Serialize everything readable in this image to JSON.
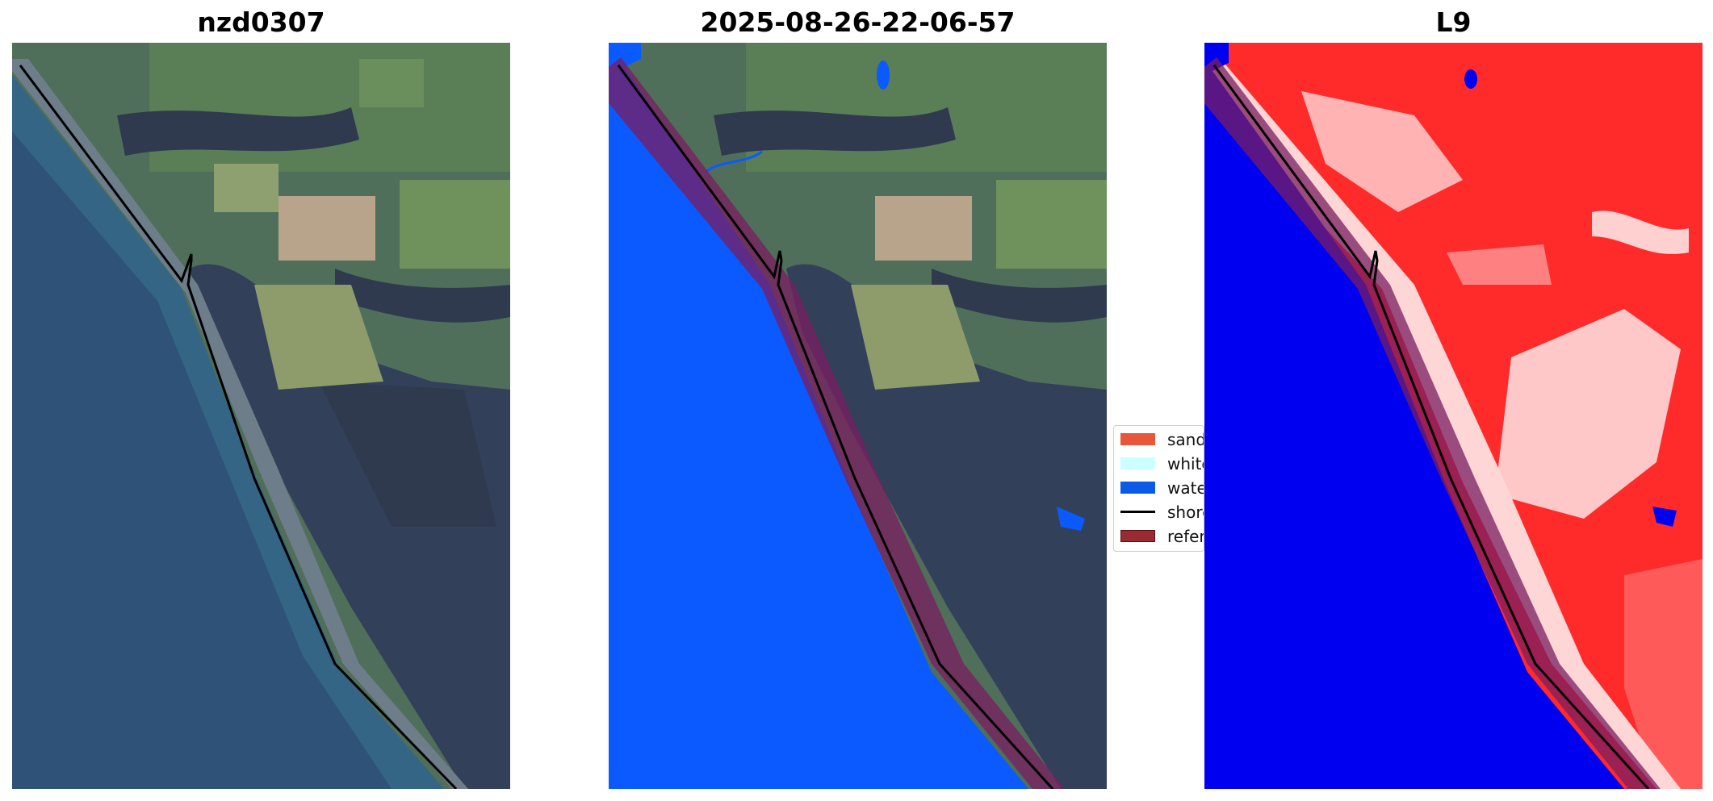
{
  "panels": [
    {
      "title": "nzd0307"
    },
    {
      "title": "2025-08-26-22-06-57"
    },
    {
      "title": "L9"
    }
  ],
  "legend": {
    "items": [
      {
        "label": "sand",
        "color": "#e8573a",
        "kind": "patch"
      },
      {
        "label": "whitewater",
        "color": "#ccffff",
        "kind": "patch"
      },
      {
        "label": "water",
        "color": "#0a5ae6",
        "kind": "patch"
      },
      {
        "label": "shoreline",
        "color": "#000000",
        "kind": "line"
      },
      {
        "label": "reference shoreline buffer",
        "color": "#9b2b33",
        "kind": "patch"
      }
    ]
  },
  "colors": {
    "ocean": "#2e5278",
    "land": "#4f6f5a",
    "forest": "#2f3a4f",
    "class_water": "#0a5aff",
    "buffer": "#7a1e62",
    "index_low": "#0000f0",
    "index_high": "#ff2a2a"
  }
}
